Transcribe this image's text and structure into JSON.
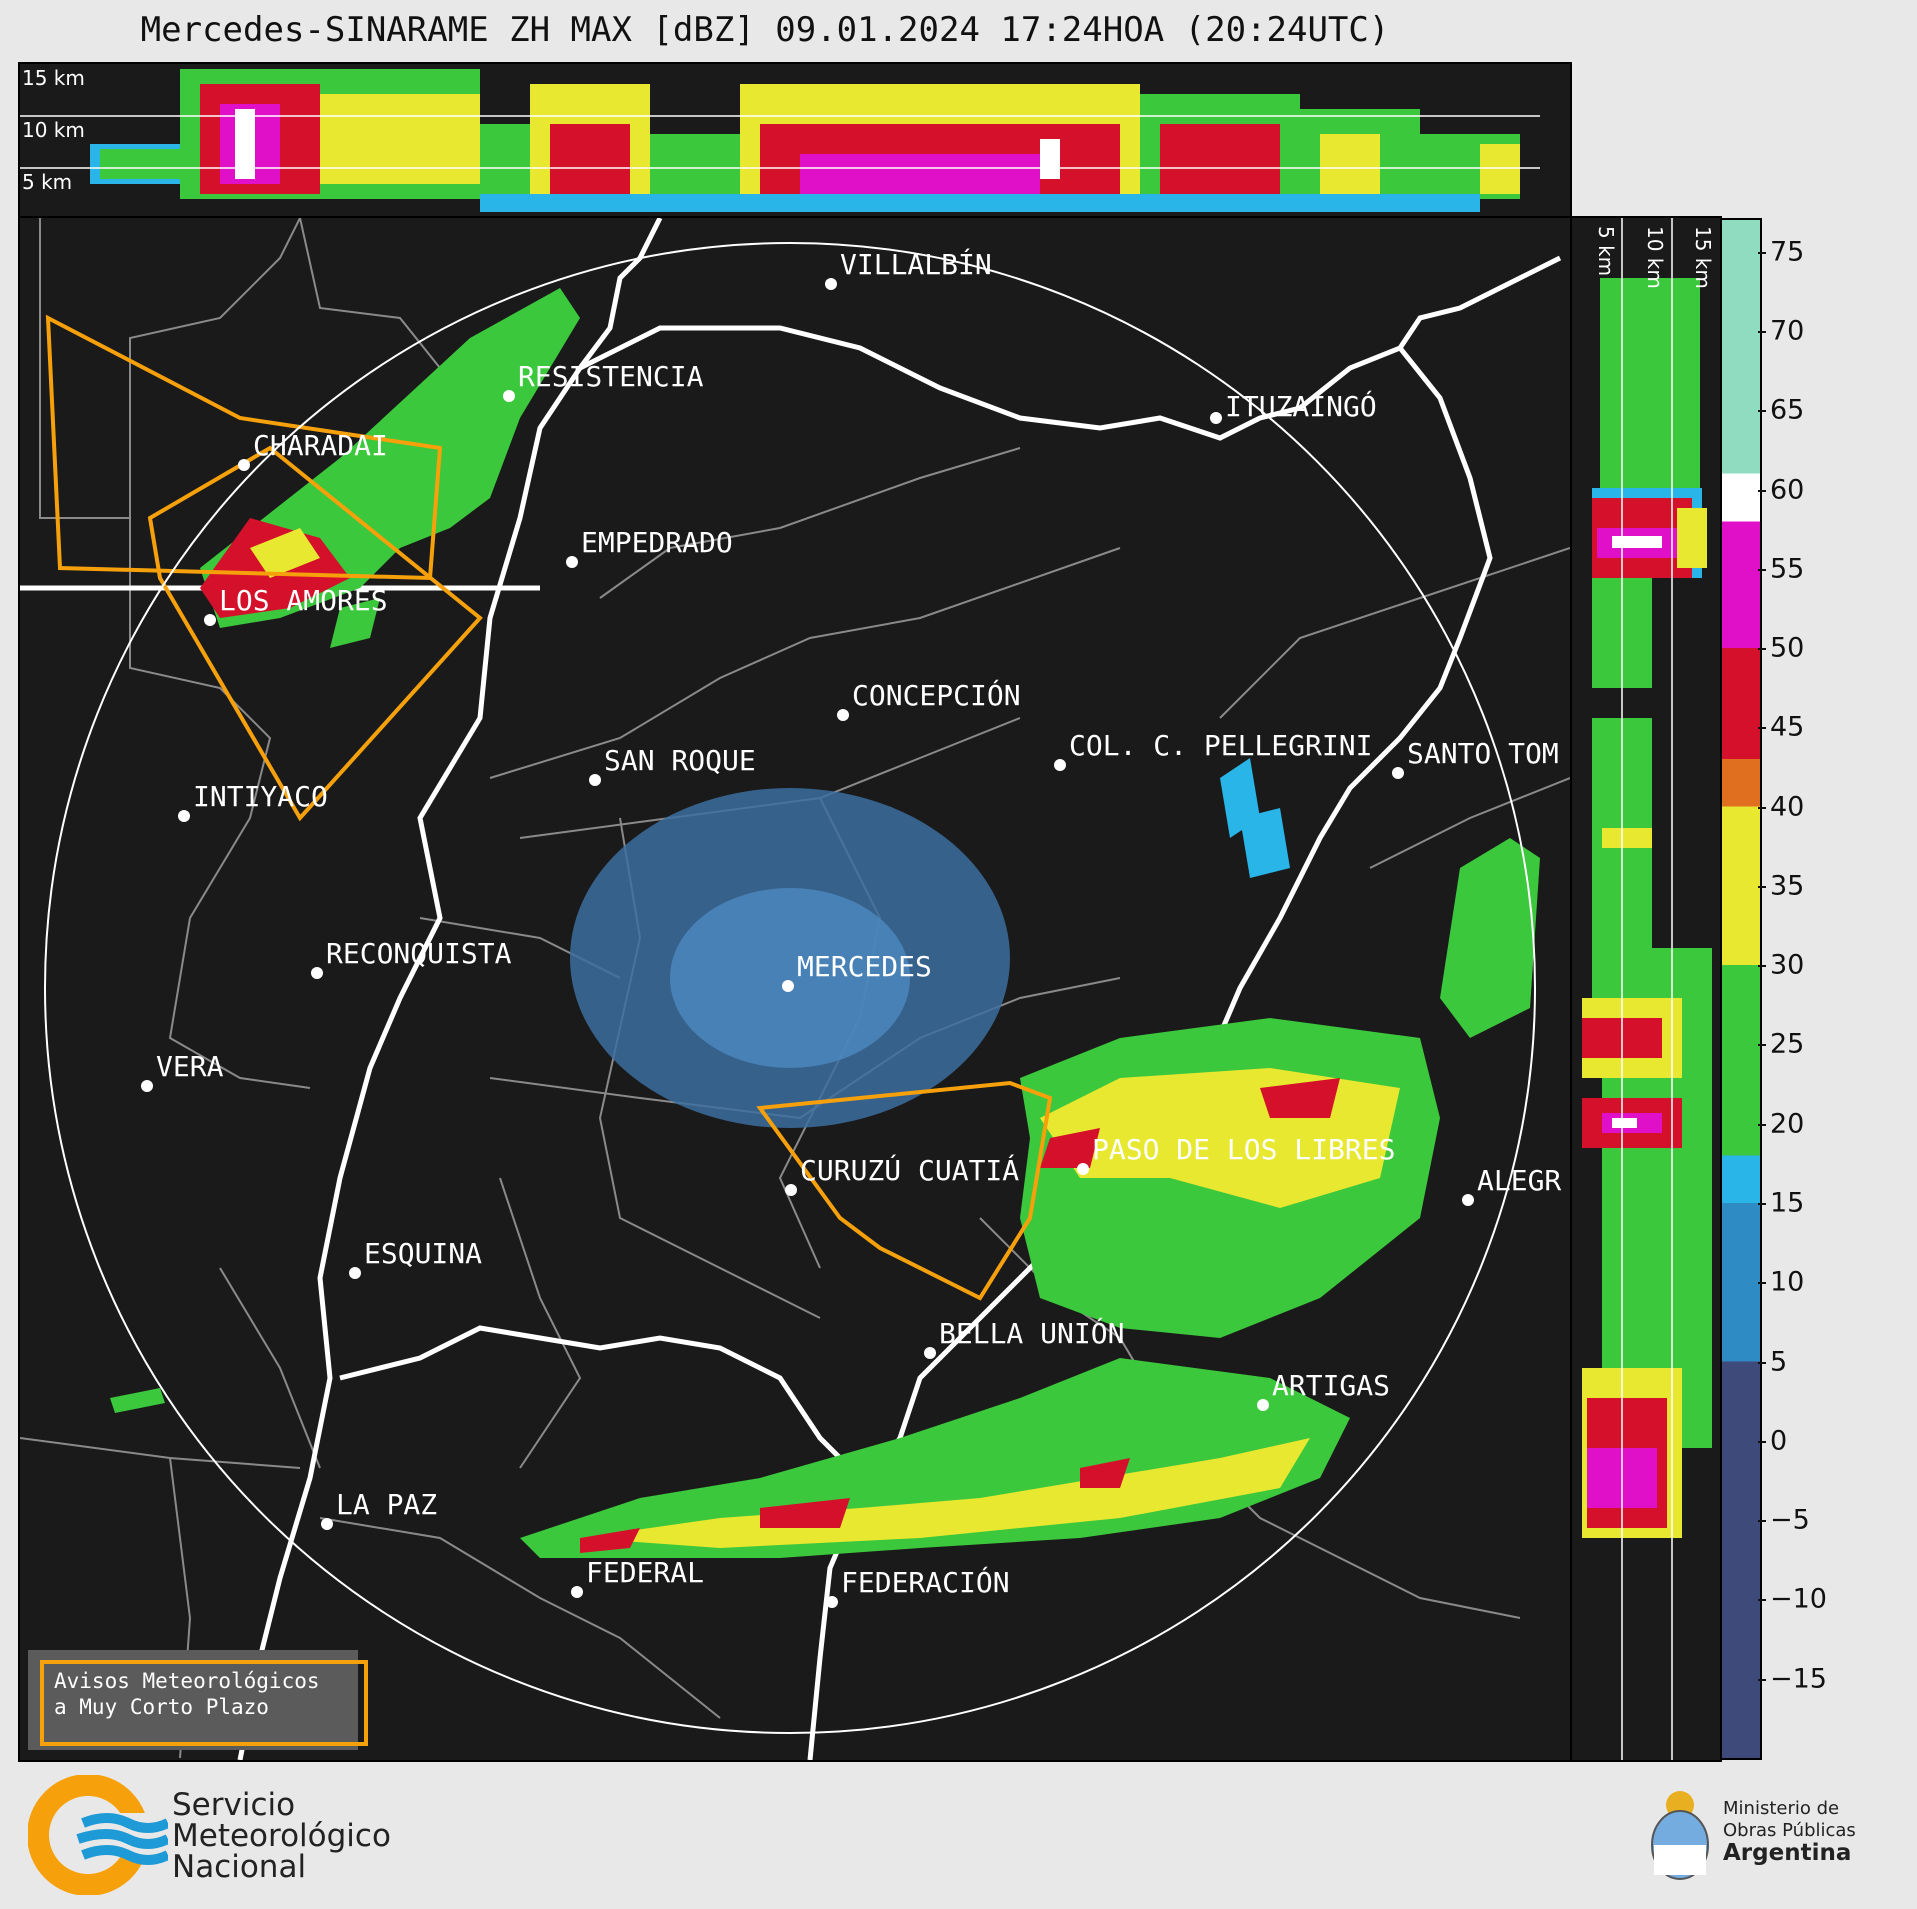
{
  "title": "Mercedes-SINARAME ZH MAX [dBZ] 09.01.2024 17:24HOA (20:24UTC)",
  "top_panel": {
    "altitude_labels": [
      "15 km",
      "10 km",
      "5 km"
    ]
  },
  "side_panel": {
    "altitude_labels": [
      "5 km",
      "10 km",
      "15 km"
    ]
  },
  "colorbar": {
    "unit": "dBZ",
    "ticks": [
      "75",
      "70",
      "65",
      "60",
      "55",
      "50",
      "45",
      "40",
      "35",
      "30",
      "25",
      "20",
      "15",
      "10",
      "5",
      "0",
      "−5",
      "−10",
      "−15"
    ],
    "range": [
      -20,
      77
    ],
    "colors": {
      "below_5": "#3e4a7a",
      "5_15": "#2f8bc4",
      "15_20": "#29b5e8",
      "20_30": "#3cc83c",
      "30_40": "#e8e830",
      "40_45": "#e07020",
      "45_50": "#d4102a",
      "50_58": "#e010c8",
      "58_62": "#ffffff",
      "62_77": "#8fdcc0"
    }
  },
  "map": {
    "cities": [
      {
        "name": "VILLALBÍN"
      },
      {
        "name": "RESISTENCIA"
      },
      {
        "name": "CHARADAI"
      },
      {
        "name": "ITUZAINGÓ"
      },
      {
        "name": "EMPEDRADO"
      },
      {
        "name": "LOS AMORES"
      },
      {
        "name": "CONCEPCIÓN"
      },
      {
        "name": "SAN ROQUE"
      },
      {
        "name": "COL. C. PELLEGRINI"
      },
      {
        "name": "SANTO TOM"
      },
      {
        "name": "INTIYACO"
      },
      {
        "name": "MERCEDES"
      },
      {
        "name": "RECONQUISTA"
      },
      {
        "name": "VERA"
      },
      {
        "name": "CURUZÚ CUATIÁ"
      },
      {
        "name": "PASO DE LOS LIBRES"
      },
      {
        "name": "ALEGR"
      },
      {
        "name": "ESQUINA"
      },
      {
        "name": "BELLA UNIÓN"
      },
      {
        "name": "ARTIGAS"
      },
      {
        "name": "LA PAZ"
      },
      {
        "name": "FEDERAL"
      },
      {
        "name": "FEDERACIÓN"
      }
    ],
    "legend": {
      "line1": "Avisos Meteorológicos",
      "line2": "a Muy Corto Plazo",
      "color": "#f6a10c"
    }
  },
  "footer": {
    "smn_line1": "Servicio",
    "smn_line2": "Meteorológico",
    "smn_line3": "Nacional",
    "ministry_line1": "Ministerio de",
    "ministry_line2": "Obras Públicas",
    "ministry_line3": "Argentina"
  }
}
